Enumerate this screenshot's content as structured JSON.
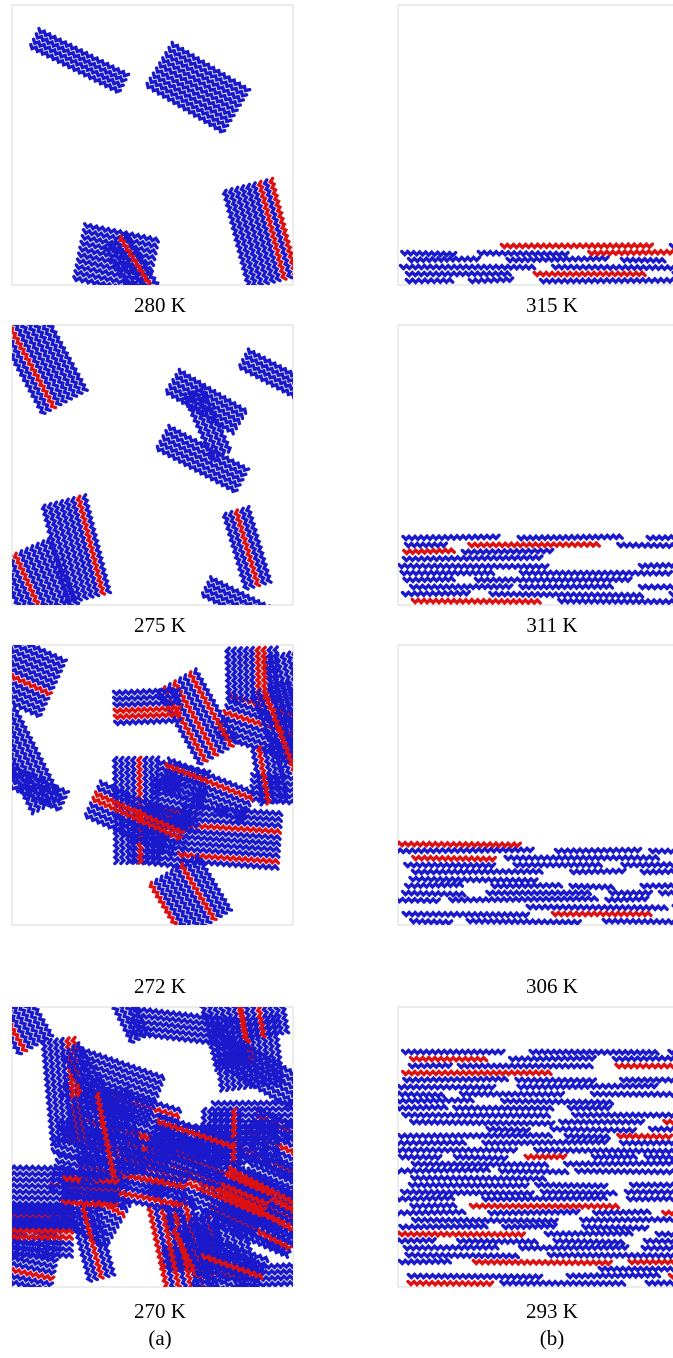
{
  "columns": [
    {
      "panels": [
        {
          "label": "280 K"
        },
        {
          "label": "275 K"
        },
        {
          "label": "272 K"
        },
        {
          "label": "270 K"
        }
      ],
      "caption": "(a)"
    },
    {
      "panels": [
        {
          "label": "315 K"
        },
        {
          "label": "311 K"
        },
        {
          "label": "306 K"
        },
        {
          "label": "293 K"
        }
      ],
      "caption": "(b)"
    }
  ]
}
